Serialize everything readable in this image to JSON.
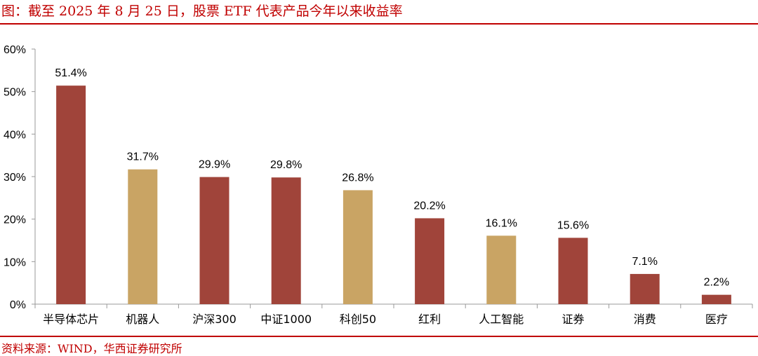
{
  "title": "图：截至 2025 年 8 月 25 日，股票 ETF 代表产品今年以来收益率",
  "source": "资料来源：WIND，华西证券研究所",
  "colors": {
    "accent": "#c00000",
    "bar_red": "#a0443a",
    "bar_gold": "#c9a464",
    "axis": "#999999"
  },
  "chart_data": {
    "type": "bar",
    "categories": [
      "半导体芯片",
      "机器人",
      "沪深300",
      "中证1000",
      "科创50",
      "红利",
      "人工智能",
      "证券",
      "消费",
      "医疗"
    ],
    "values": [
      51.4,
      31.7,
      29.9,
      29.8,
      26.8,
      20.2,
      16.1,
      15.6,
      7.1,
      2.2
    ],
    "data_labels": [
      "51.4%",
      "31.7%",
      "29.9%",
      "29.8%",
      "26.8%",
      "20.2%",
      "16.1%",
      "15.6%",
      "7.1%",
      "2.2%"
    ],
    "bar_colors": [
      "#a0443a",
      "#c9a464",
      "#a0443a",
      "#a0443a",
      "#c9a464",
      "#a0443a",
      "#c9a464",
      "#a0443a",
      "#a0443a",
      "#a0443a"
    ],
    "yticks": [
      0,
      10,
      20,
      30,
      40,
      50,
      60
    ],
    "ytick_labels": [
      "0%",
      "10%",
      "20%",
      "30%",
      "40%",
      "50%",
      "60%"
    ],
    "ylim": [
      0,
      60
    ],
    "title": "",
    "xlabel": "",
    "ylabel": "",
    "grid": false,
    "legend": "none"
  }
}
